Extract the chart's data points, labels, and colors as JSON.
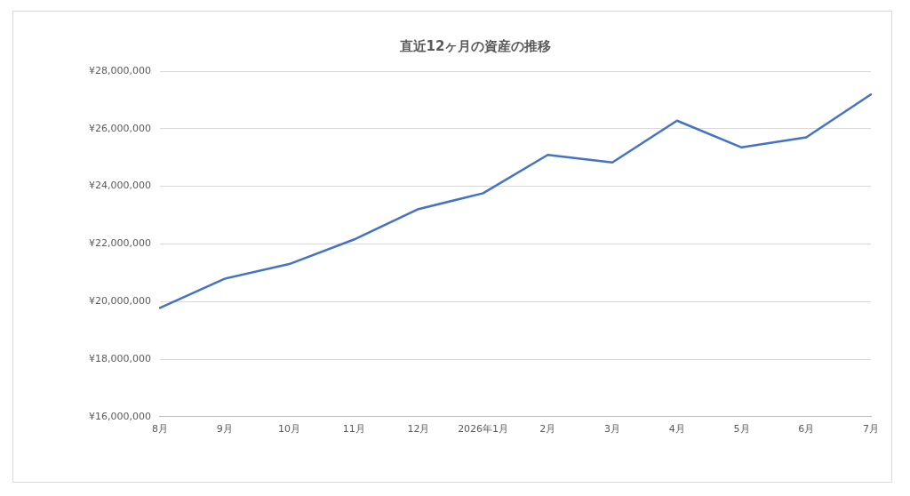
{
  "chart_data": {
    "type": "line",
    "title": "直近12ヶ月の資産の推移",
    "categories": [
      "8月",
      "9月",
      "10月",
      "11月",
      "12月",
      "2026年1月",
      "2月",
      "3月",
      "4月",
      "5月",
      "6月",
      "7月"
    ],
    "series": [
      {
        "color": "#4472c4",
        "values": [
          19780000,
          20790000,
          21300000,
          22150000,
          23210000,
          23760000,
          25090000,
          24830000,
          26280000,
          25350000,
          25700000,
          27190000
        ]
      }
    ],
    "ylim": [
      16000000,
      28000000
    ],
    "yticks": [
      {
        "value": 16000000,
        "label": "¥16,000,000"
      },
      {
        "value": 18000000,
        "label": "¥18,000,000"
      },
      {
        "value": 20000000,
        "label": "¥20,000,000"
      },
      {
        "value": 22000000,
        "label": "¥22,000,000"
      },
      {
        "value": 24000000,
        "label": "¥24,000,000"
      },
      {
        "value": 26000000,
        "label": "¥26,000,000"
      },
      {
        "value": 28000000,
        "label": "¥28,000,000"
      }
    ],
    "grid": "y",
    "legend": false,
    "marker": "none",
    "line_style": "solid"
  }
}
